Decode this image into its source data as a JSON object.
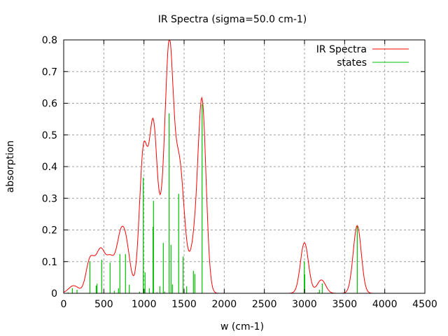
{
  "chart_data": {
    "type": "line",
    "title": "IR Spectra (sigma=50.0 cm-1)",
    "xlabel": "w (cm-1)",
    "ylabel": "absorption",
    "xlim": [
      0,
      4500
    ],
    "ylim": [
      0,
      0.8
    ],
    "xticks": [
      0,
      500,
      1000,
      1500,
      2000,
      2500,
      3000,
      3500,
      4000,
      4500
    ],
    "yticks": [
      0,
      0.1,
      0.2,
      0.3,
      0.4,
      0.5,
      0.6,
      0.7,
      0.8
    ],
    "grid": true,
    "legend_position": "top-right",
    "sigma": 50,
    "series": [
      {
        "name": "IR Spectra",
        "color": "#ff0000",
        "kind": "gaussian-broadened sum of states"
      },
      {
        "name": "states",
        "color": "#00c000",
        "kind": "impulses",
        "x": [
          55,
          108,
          166,
          326,
          405,
          415,
          474,
          578,
          631,
          683,
          700,
          770,
          817,
          945,
          991,
          1000,
          1014,
          1067,
          1113,
          1119,
          1162,
          1198,
          1241,
          1259,
          1314,
          1337,
          1355,
          1433,
          1488,
          1532,
          1616,
          1634,
          1724,
          2997,
          3003,
          3169,
          3186,
          3221,
          3657
        ],
        "y": [
          0.003,
          0.016,
          0.011,
          0.1,
          0.024,
          0.03,
          0.106,
          0.097,
          0.008,
          0.016,
          0.124,
          0.124,
          0.027,
          0.005,
          0.365,
          0.013,
          0.066,
          0.016,
          0.21,
          0.292,
          0.003,
          0.022,
          0.159,
          0.005,
          0.568,
          0.153,
          0.028,
          0.314,
          0.116,
          0.022,
          0.071,
          0.061,
          0.597,
          0.1,
          0.06,
          0.003,
          0.011,
          0.031,
          0.214
        ]
      }
    ]
  }
}
